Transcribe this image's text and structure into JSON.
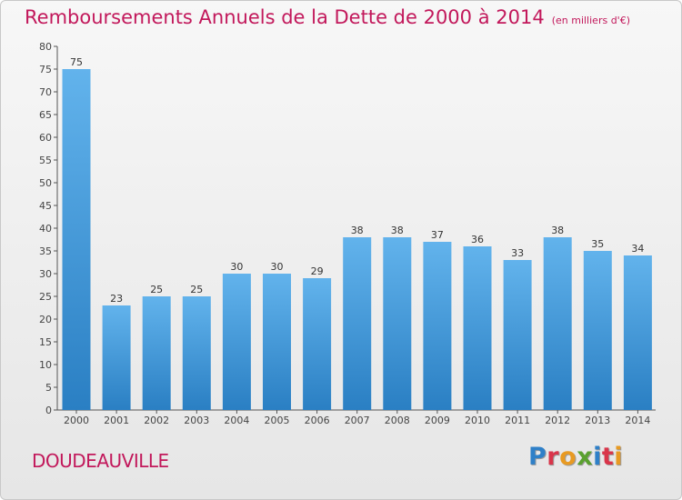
{
  "header": {
    "title": "Remboursements Annuels de la Dette de 2000 à 2014",
    "unit": "(en milliers d'€)"
  },
  "footer": {
    "city": "DOUDEAUVILLE",
    "logo": "Proxiti"
  },
  "colors": {
    "bar_light": "#62b3ec",
    "bar_dark": "#2a7fc3",
    "title": "#c2185b",
    "logo_letters": [
      "#2f80c8",
      "#d9354a",
      "#e89a22",
      "#5aa12f",
      "#2f80c8",
      "#d9354a",
      "#e89a22"
    ]
  },
  "chart_data": {
    "type": "bar",
    "title": "Remboursements Annuels de la Dette de 2000 à 2014",
    "xlabel": "",
    "ylabel": "",
    "categories": [
      "2000",
      "2001",
      "2002",
      "2003",
      "2004",
      "2005",
      "2006",
      "2007",
      "2008",
      "2009",
      "2010",
      "2011",
      "2012",
      "2013",
      "2014"
    ],
    "values": [
      75,
      23,
      25,
      25,
      30,
      30,
      29,
      38,
      38,
      37,
      36,
      33,
      38,
      35,
      34
    ],
    "ylim": [
      0,
      80
    ],
    "yticks": [
      0,
      5,
      10,
      15,
      20,
      25,
      30,
      35,
      40,
      45,
      50,
      55,
      60,
      65,
      70,
      75,
      80
    ],
    "grid": false,
    "legend": "none"
  }
}
